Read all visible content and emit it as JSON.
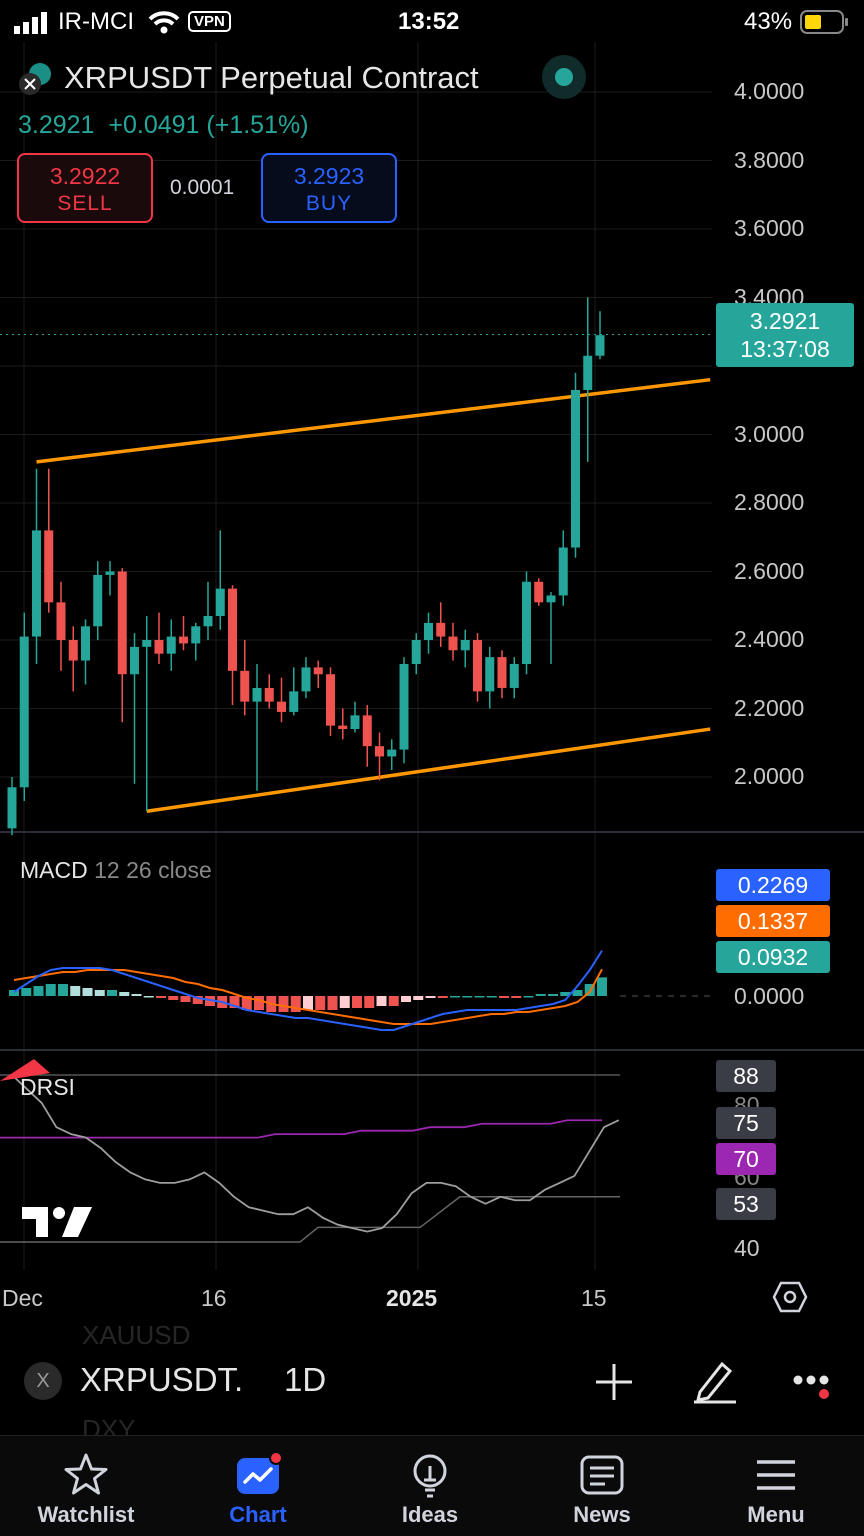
{
  "status_bar": {
    "carrier": "IR-MCI",
    "vpn": "VPN",
    "time": "13:52",
    "battery": "43%"
  },
  "header": {
    "title": "XRPUSDT Perpetual Contract",
    "price": "3.2921",
    "change": "+0.0491 (+1.51%)",
    "sell": {
      "price": "3.2922",
      "label": "SELL"
    },
    "buy": {
      "price": "3.2923",
      "label": "BUY"
    },
    "spread": "0.0001"
  },
  "price_axis": {
    "labels": [
      "4.0000",
      "3.8000",
      "3.6000",
      "3.4000",
      "3.0000",
      "2.8000",
      "2.6000",
      "2.4000",
      "2.2000",
      "2.0000"
    ],
    "current_price": "3.2921",
    "countdown": "13:37:08"
  },
  "macd": {
    "title": "MACD",
    "params": "12 26 close",
    "macd_value": "0.2269",
    "signal_value": "0.1337",
    "hist_value": "0.0932",
    "zero_label": "0.0000"
  },
  "drsi": {
    "title": "DRSI",
    "tags": [
      "88",
      "75",
      "70",
      "53"
    ],
    "axis_labels": [
      "80",
      "60",
      "40"
    ]
  },
  "time_axis": {
    "labels": [
      "Dec",
      "16",
      "2025",
      "15"
    ]
  },
  "toolbar": {
    "symbol": "XRPUSDT.",
    "interval": "1D",
    "ghost_top": "XAUUSD",
    "ghost_bottom": "DXY"
  },
  "tabs": [
    {
      "label": "Watchlist"
    },
    {
      "label": "Chart"
    },
    {
      "label": "Ideas"
    },
    {
      "label": "News"
    },
    {
      "label": "Menu"
    }
  ],
  "colors": {
    "up": "#26a69a",
    "down": "#ef5350",
    "accent": "#2962ff",
    "channel": "#ff9800",
    "macd_line": "#2962ff",
    "signal_line": "#ff6d00"
  },
  "chart_data": {
    "type": "candlestick",
    "symbol": "XRPUSDT",
    "interval": "1D",
    "y_range": [
      1.84,
      4.08
    ],
    "candles": [
      {
        "o": 1.85,
        "h": 2.0,
        "l": 1.83,
        "c": 1.97
      },
      {
        "o": 1.97,
        "h": 2.48,
        "l": 1.93,
        "c": 2.41
      },
      {
        "o": 2.41,
        "h": 2.9,
        "l": 2.33,
        "c": 2.72
      },
      {
        "o": 2.72,
        "h": 2.9,
        "l": 2.48,
        "c": 2.51
      },
      {
        "o": 2.51,
        "h": 2.57,
        "l": 2.31,
        "c": 2.4
      },
      {
        "o": 2.4,
        "h": 2.44,
        "l": 2.25,
        "c": 2.34
      },
      {
        "o": 2.34,
        "h": 2.46,
        "l": 2.27,
        "c": 2.44
      },
      {
        "o": 2.44,
        "h": 2.63,
        "l": 2.4,
        "c": 2.59
      },
      {
        "o": 2.59,
        "h": 2.63,
        "l": 2.53,
        "c": 2.6
      },
      {
        "o": 2.6,
        "h": 2.61,
        "l": 2.16,
        "c": 2.3
      },
      {
        "o": 2.3,
        "h": 2.42,
        "l": 1.98,
        "c": 2.38
      },
      {
        "o": 2.38,
        "h": 2.47,
        "l": 1.9,
        "c": 2.4
      },
      {
        "o": 2.4,
        "h": 2.48,
        "l": 2.33,
        "c": 2.36
      },
      {
        "o": 2.36,
        "h": 2.46,
        "l": 2.31,
        "c": 2.41
      },
      {
        "o": 2.41,
        "h": 2.47,
        "l": 2.37,
        "c": 2.39
      },
      {
        "o": 2.39,
        "h": 2.45,
        "l": 2.34,
        "c": 2.44
      },
      {
        "o": 2.44,
        "h": 2.57,
        "l": 2.4,
        "c": 2.47
      },
      {
        "o": 2.47,
        "h": 2.72,
        "l": 2.43,
        "c": 2.55
      },
      {
        "o": 2.55,
        "h": 2.56,
        "l": 2.21,
        "c": 2.31
      },
      {
        "o": 2.31,
        "h": 2.4,
        "l": 2.18,
        "c": 2.22
      },
      {
        "o": 2.22,
        "h": 2.33,
        "l": 1.96,
        "c": 2.26
      },
      {
        "o": 2.26,
        "h": 2.3,
        "l": 2.2,
        "c": 2.22
      },
      {
        "o": 2.22,
        "h": 2.29,
        "l": 2.16,
        "c": 2.19
      },
      {
        "o": 2.19,
        "h": 2.32,
        "l": 2.18,
        "c": 2.25
      },
      {
        "o": 2.25,
        "h": 2.35,
        "l": 2.23,
        "c": 2.32
      },
      {
        "o": 2.32,
        "h": 2.34,
        "l": 2.26,
        "c": 2.3
      },
      {
        "o": 2.3,
        "h": 2.32,
        "l": 2.12,
        "c": 2.15
      },
      {
        "o": 2.15,
        "h": 2.2,
        "l": 2.11,
        "c": 2.14
      },
      {
        "o": 2.14,
        "h": 2.22,
        "l": 2.13,
        "c": 2.18
      },
      {
        "o": 2.18,
        "h": 2.21,
        "l": 2.03,
        "c": 2.09
      },
      {
        "o": 2.09,
        "h": 2.13,
        "l": 1.99,
        "c": 2.06
      },
      {
        "o": 2.06,
        "h": 2.11,
        "l": 2.02,
        "c": 2.08
      },
      {
        "o": 2.08,
        "h": 2.35,
        "l": 2.04,
        "c": 2.33
      },
      {
        "o": 2.33,
        "h": 2.42,
        "l": 2.3,
        "c": 2.4
      },
      {
        "o": 2.4,
        "h": 2.48,
        "l": 2.36,
        "c": 2.45
      },
      {
        "o": 2.45,
        "h": 2.51,
        "l": 2.38,
        "c": 2.41
      },
      {
        "o": 2.41,
        "h": 2.45,
        "l": 2.34,
        "c": 2.37
      },
      {
        "o": 2.37,
        "h": 2.43,
        "l": 2.32,
        "c": 2.4
      },
      {
        "o": 2.4,
        "h": 2.42,
        "l": 2.22,
        "c": 2.25
      },
      {
        "o": 2.25,
        "h": 2.38,
        "l": 2.2,
        "c": 2.35
      },
      {
        "o": 2.35,
        "h": 2.37,
        "l": 2.23,
        "c": 2.26
      },
      {
        "o": 2.26,
        "h": 2.35,
        "l": 2.23,
        "c": 2.33
      },
      {
        "o": 2.33,
        "h": 2.6,
        "l": 2.3,
        "c": 2.57
      },
      {
        "o": 2.57,
        "h": 2.58,
        "l": 2.5,
        "c": 2.51
      },
      {
        "o": 2.51,
        "h": 2.54,
        "l": 2.33,
        "c": 2.53
      },
      {
        "o": 2.53,
        "h": 2.72,
        "l": 2.5,
        "c": 2.67
      },
      {
        "o": 2.67,
        "h": 3.18,
        "l": 2.64,
        "c": 3.13
      },
      {
        "o": 3.13,
        "h": 3.4,
        "l": 2.92,
        "c": 3.23
      },
      {
        "o": 3.23,
        "h": 3.36,
        "l": 3.22,
        "c": 3.29
      }
    ],
    "channel_upper": [
      [
        2,
        2.92
      ],
      [
        57,
        3.16
      ]
    ],
    "channel_lower": [
      [
        11,
        1.9
      ],
      [
        57,
        2.14
      ]
    ],
    "macd": [
      0.02,
      0.06,
      0.1,
      0.13,
      0.14,
      0.14,
      0.14,
      0.14,
      0.13,
      0.11,
      0.09,
      0.07,
      0.05,
      0.03,
      0.01,
      -0.01,
      -0.02,
      -0.03,
      -0.05,
      -0.07,
      -0.08,
      -0.09,
      -0.1,
      -0.11,
      -0.11,
      -0.12,
      -0.13,
      -0.14,
      -0.15,
      -0.16,
      -0.17,
      -0.17,
      -0.15,
      -0.13,
      -0.11,
      -0.09,
      -0.08,
      -0.07,
      -0.07,
      -0.07,
      -0.07,
      -0.07,
      -0.06,
      -0.05,
      -0.04,
      -0.02,
      0.05,
      0.13,
      0.2269
    ],
    "signal": [
      0.08,
      0.09,
      0.1,
      0.11,
      0.12,
      0.12,
      0.13,
      0.13,
      0.13,
      0.13,
      0.12,
      0.11,
      0.1,
      0.09,
      0.07,
      0.06,
      0.04,
      0.03,
      0.01,
      -0.01,
      -0.02,
      -0.04,
      -0.05,
      -0.06,
      -0.07,
      -0.08,
      -0.09,
      -0.1,
      -0.11,
      -0.12,
      -0.13,
      -0.14,
      -0.14,
      -0.14,
      -0.14,
      -0.13,
      -0.12,
      -0.11,
      -0.1,
      -0.09,
      -0.09,
      -0.08,
      -0.08,
      -0.07,
      -0.06,
      -0.05,
      -0.03,
      0.02,
      0.1337
    ],
    "histogram": [
      0.03,
      0.04,
      0.05,
      0.06,
      0.06,
      0.05,
      0.04,
      0.03,
      0.03,
      0.02,
      0.01,
      0.0,
      -0.01,
      -0.02,
      -0.03,
      -0.04,
      -0.05,
      -0.06,
      -0.06,
      -0.07,
      -0.07,
      -0.08,
      -0.08,
      -0.08,
      -0.07,
      -0.07,
      -0.07,
      -0.06,
      -0.06,
      -0.06,
      -0.05,
      -0.05,
      -0.03,
      -0.02,
      -0.01,
      -0.01,
      0.0,
      0.0,
      0.0,
      0.0,
      -0.01,
      -0.01,
      0.0,
      0.01,
      0.01,
      0.02,
      0.03,
      0.06,
      0.0932
    ],
    "drsi_main": [
      88,
      84,
      80,
      73,
      71,
      70,
      67,
      63,
      60,
      58,
      57,
      57,
      58,
      60,
      57,
      53,
      50,
      49,
      48,
      48,
      50,
      47,
      45,
      44,
      43,
      44,
      48,
      54,
      57,
      57,
      56,
      53,
      51,
      53,
      52,
      52,
      55,
      57,
      59,
      66,
      73,
      75
    ],
    "drsi_ma": [
      70,
      70,
      70,
      70,
      70,
      70,
      70,
      70,
      70,
      70,
      70,
      70,
      70,
      70,
      70,
      70,
      71,
      71,
      71,
      71,
      71,
      72,
      72,
      72,
      72,
      73,
      73,
      73,
      74,
      74,
      74,
      74,
      74,
      75,
      75,
      75
    ]
  }
}
